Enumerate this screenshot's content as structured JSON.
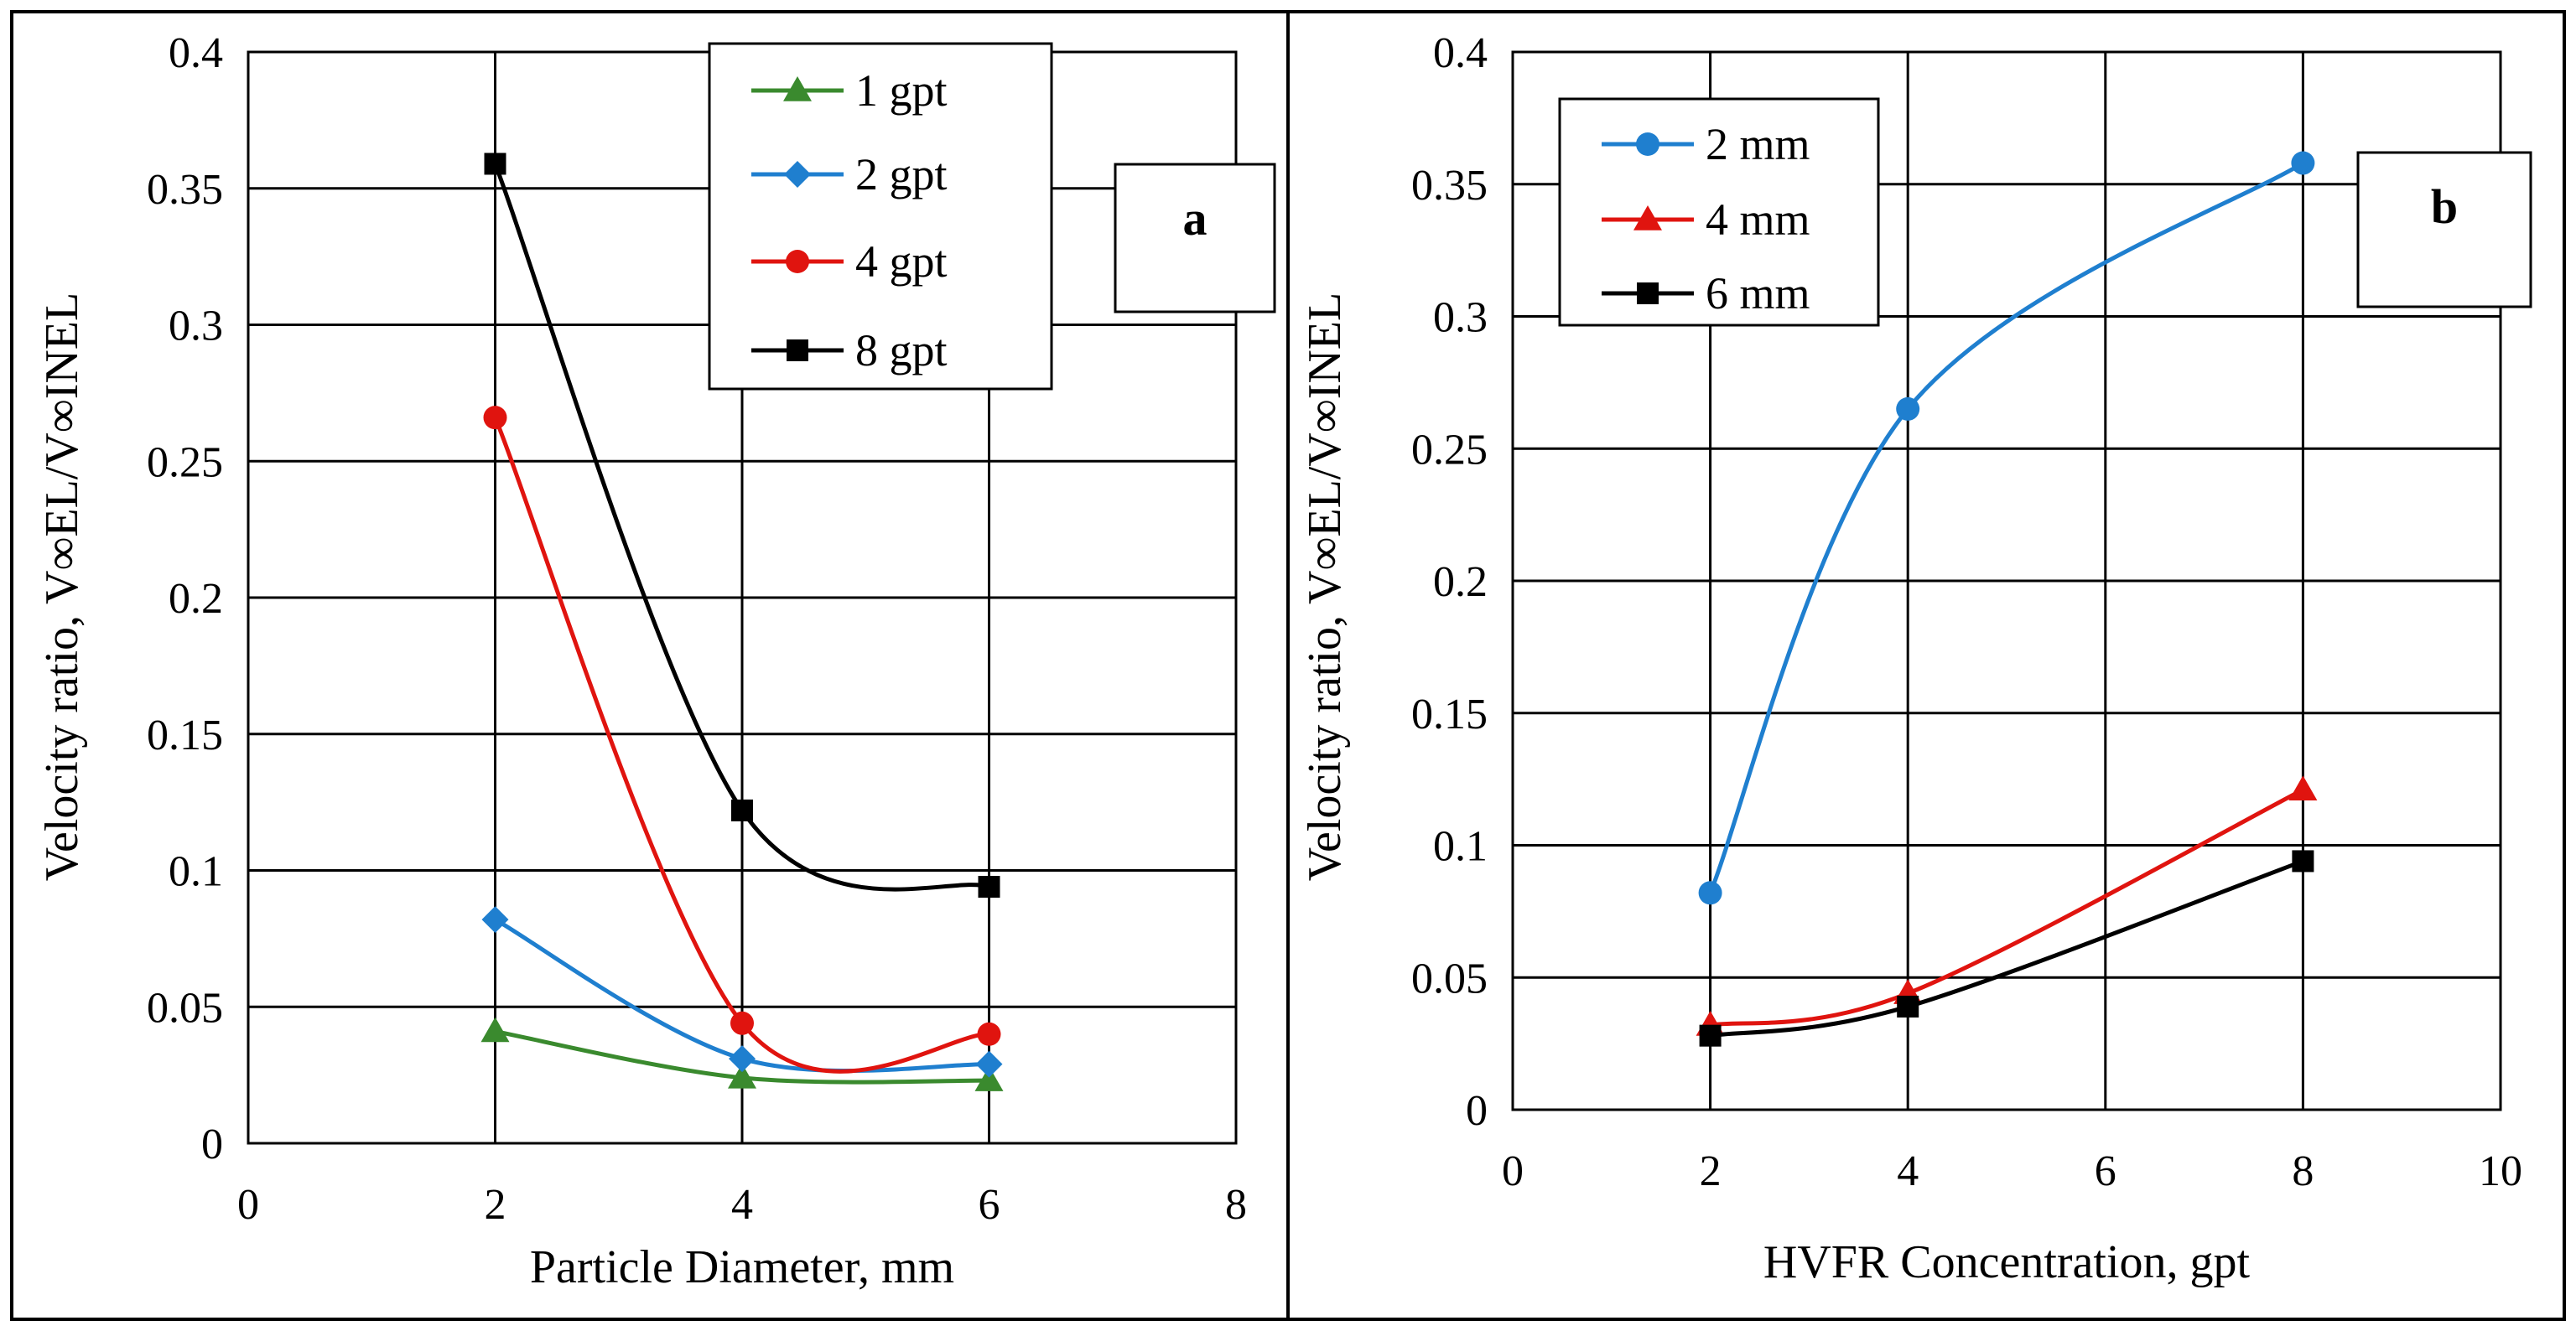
{
  "chart_data": [
    {
      "type": "line",
      "panel_label": "a",
      "title": "",
      "xlabel": "Particle Diameter, mm",
      "ylabel": "Velocity ratio, V∞EL/V∞INEL",
      "xlim": [
        0,
        8
      ],
      "ylim": [
        0,
        0.4
      ],
      "xticks": [
        "0",
        "2",
        "4",
        "6",
        "8"
      ],
      "yticks": [
        "0",
        "0.05",
        "0.1",
        "0.15",
        "0.2",
        "0.25",
        "0.3",
        "0.35",
        "0.4"
      ],
      "grid": true,
      "legend_position": "top-center",
      "x": [
        2,
        4,
        6
      ],
      "series": [
        {
          "name": "1 gpt",
          "values": [
            0.041,
            0.024,
            0.023
          ],
          "color": "#3a8a2e",
          "marker": "triangle"
        },
        {
          "name": "2 gpt",
          "values": [
            0.082,
            0.031,
            0.029
          ],
          "color": "#1f7fcf",
          "marker": "diamond"
        },
        {
          "name": "4 gpt",
          "values": [
            0.266,
            0.044,
            0.04
          ],
          "color": "#e0140f",
          "marker": "circle"
        },
        {
          "name": "8 gpt",
          "values": [
            0.359,
            0.122,
            0.094
          ],
          "color": "#000000",
          "marker": "square"
        }
      ]
    },
    {
      "type": "line",
      "panel_label": "b",
      "title": "",
      "xlabel": "HVFR Concentration, gpt",
      "ylabel": "Velocity ratio, V∞EL/V∞INEL",
      "xlim": [
        0,
        10
      ],
      "ylim": [
        0,
        0.4
      ],
      "xticks": [
        "0",
        "2",
        "4",
        "6",
        "8",
        "10"
      ],
      "yticks": [
        "0",
        "0.05",
        "0.1",
        "0.15",
        "0.2",
        "0.25",
        "0.3",
        "0.35",
        "0.4"
      ],
      "grid": true,
      "legend_position": "top-left",
      "x": [
        2,
        4,
        8
      ],
      "series": [
        {
          "name": "2 mm",
          "values": [
            0.082,
            0.265,
            0.358
          ],
          "color": "#1f7fcf",
          "marker": "circle"
        },
        {
          "name": "4 mm",
          "values": [
            0.032,
            0.044,
            0.121
          ],
          "color": "#e0140f",
          "marker": "triangle"
        },
        {
          "name": "6 mm",
          "values": [
            0.028,
            0.039,
            0.094
          ],
          "color": "#000000",
          "marker": "square"
        }
      ]
    }
  ]
}
